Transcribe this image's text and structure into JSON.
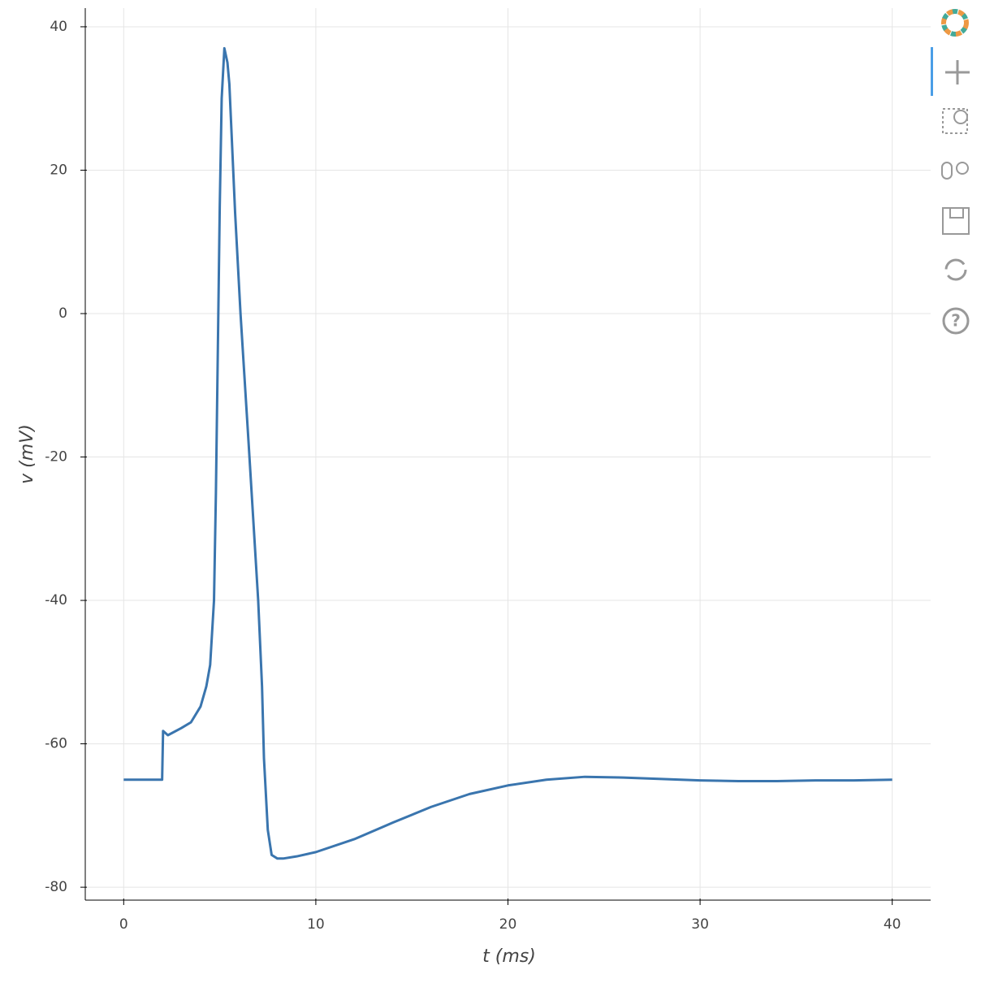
{
  "chart_data": {
    "type": "line",
    "x_label": "t (ms)",
    "y_label": "v (mV)",
    "x": [
      0,
      2,
      2.05,
      2.3,
      3,
      3.5,
      4,
      4.3,
      4.5,
      4.7,
      4.8,
      4.9,
      5.0,
      5.1,
      5.24,
      5.4,
      5.5,
      5.8,
      6.08,
      6.5,
      7.0,
      7.2,
      7.3,
      7.5,
      7.7,
      8.0,
      8.3,
      9,
      10,
      12,
      14,
      16,
      18,
      20,
      22,
      24,
      26,
      28,
      30,
      32,
      34,
      36,
      38,
      40
    ],
    "series": [
      {
        "color": "#3a75ae",
        "values": [
          -65,
          -65,
          -58.2,
          -58.8,
          -57.8,
          -57,
          -54.8,
          -52,
          -49,
          -40,
          -25,
          -5,
          15,
          30,
          37,
          35,
          32,
          14,
          0,
          -18,
          -40,
          -52,
          -62,
          -72,
          -75.5,
          -76,
          -76,
          -75.7,
          -75.1,
          -73.3,
          -71,
          -68.8,
          -67,
          -65.8,
          -65,
          -64.6,
          -64.7,
          -64.9,
          -65.1,
          -65.2,
          -65.2,
          -65.1,
          -65.1,
          -65
        ]
      }
    ],
    "xlim": [
      -2,
      42
    ],
    "ylim": [
      -81.8,
      42.6
    ],
    "xticks": [
      0,
      10,
      20,
      30,
      40
    ],
    "yticks": [
      -80,
      -60,
      -40,
      -20,
      0,
      20,
      40
    ],
    "grid": true
  }
}
